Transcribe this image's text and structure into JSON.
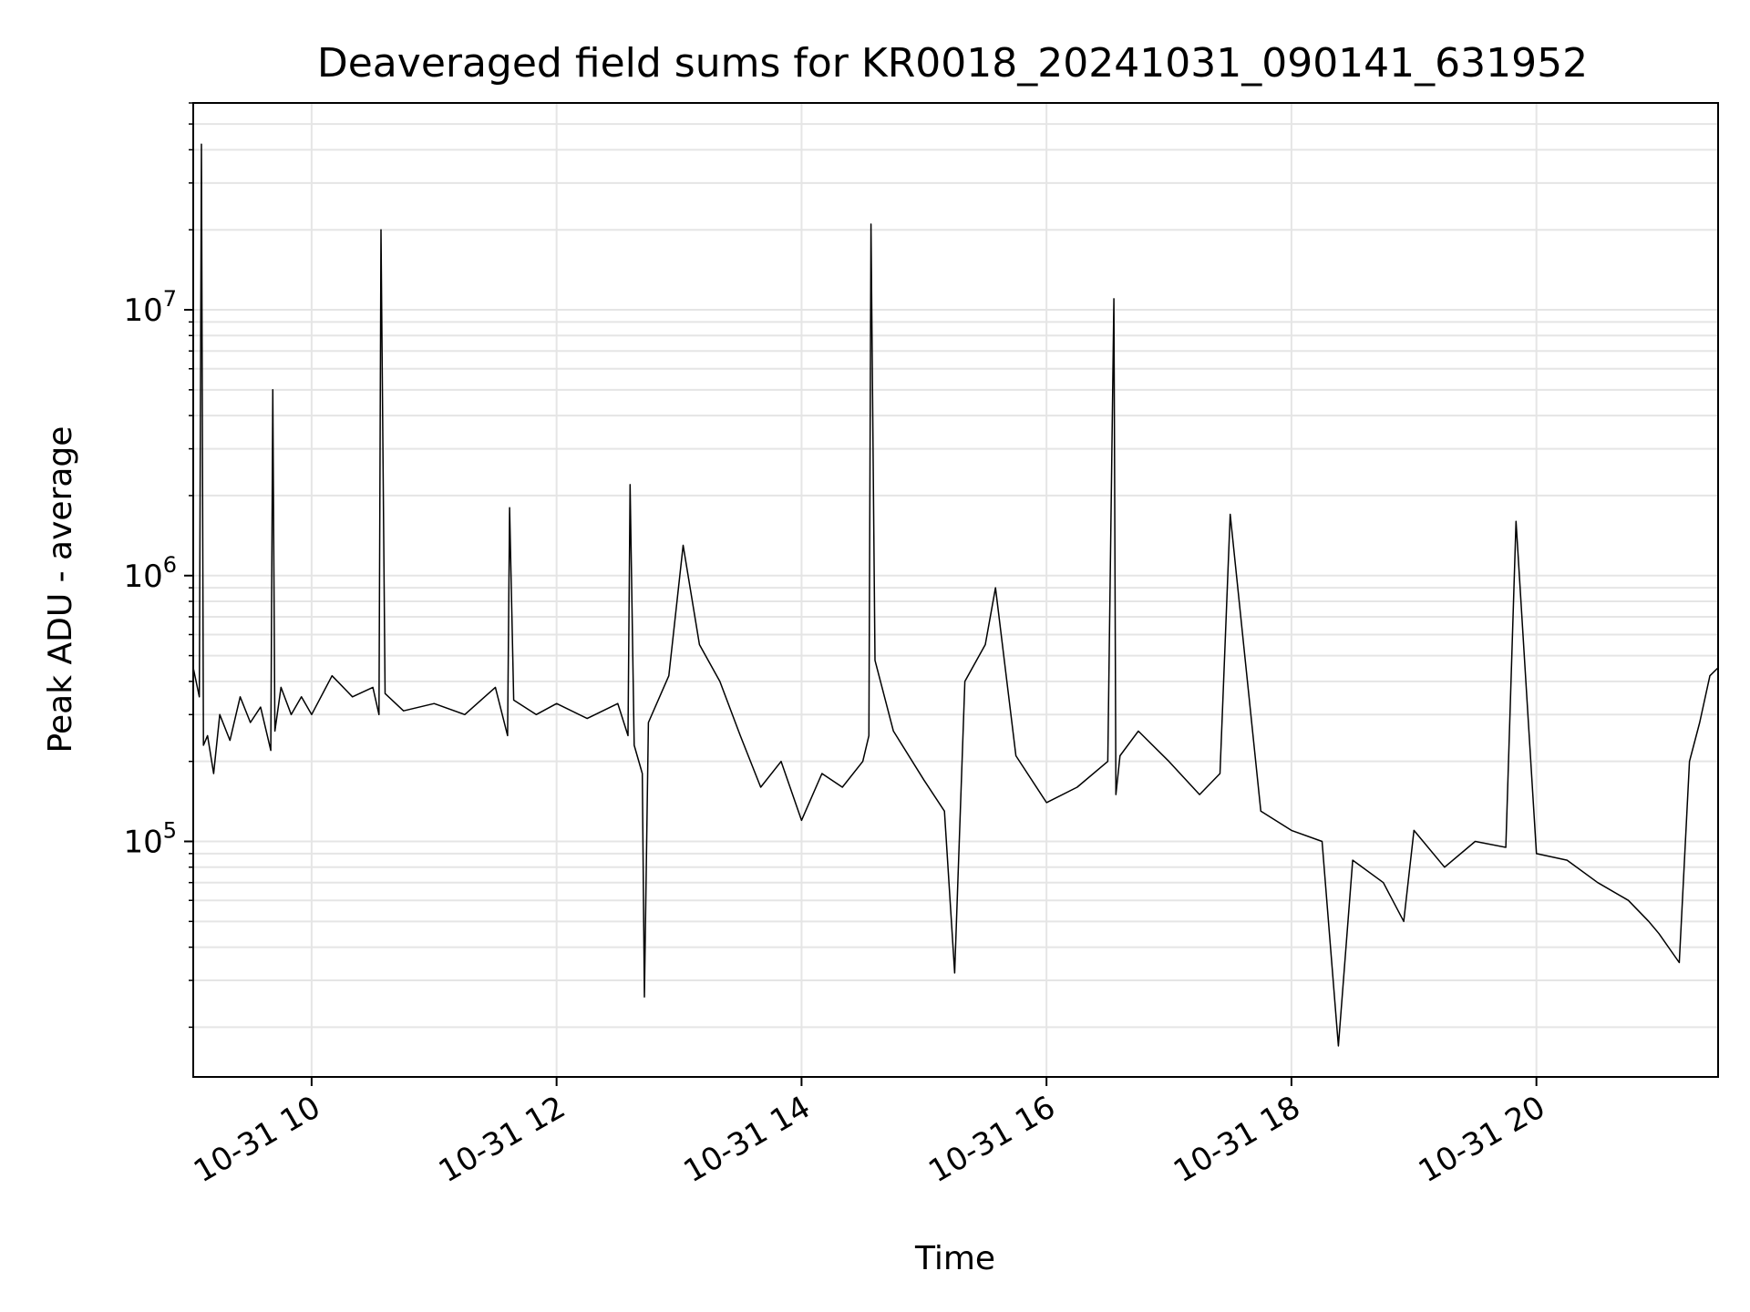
{
  "chart_data": {
    "type": "line",
    "title": "Deaveraged field sums for KR0018_20241031_090141_631952",
    "xlabel": "Time",
    "ylabel": "Peak ADU - average",
    "yscale": "log",
    "ylim": [
      13000,
      60000000
    ],
    "xlim": [
      "2024-10-31 09:02",
      "2024-10-31 21:29"
    ],
    "grid": true,
    "line_color": "#000000",
    "grid_color": "#e5e5e5",
    "x_ticks": [
      {
        "value": "2024-10-31 10:00",
        "label": "10-31 10"
      },
      {
        "value": "2024-10-31 12:00",
        "label": "10-31 12"
      },
      {
        "value": "2024-10-31 14:00",
        "label": "10-31 14"
      },
      {
        "value": "2024-10-31 16:00",
        "label": "10-31 16"
      },
      {
        "value": "2024-10-31 18:00",
        "label": "10-31 18"
      },
      {
        "value": "2024-10-31 20:00",
        "label": "10-31 20"
      }
    ],
    "y_ticks": [
      {
        "value": 100000,
        "base": "10",
        "exp": "5"
      },
      {
        "value": 1000000,
        "base": "10",
        "exp": "6"
      },
      {
        "value": 10000000,
        "base": "10",
        "exp": "7"
      }
    ],
    "series": [
      {
        "x": [
          "2024-10-31 09:02",
          "2024-10-31 09:05",
          "2024-10-31 09:06",
          "2024-10-31 09:07",
          "2024-10-31 09:09",
          "2024-10-31 09:12",
          "2024-10-31 09:15",
          "2024-10-31 09:20",
          "2024-10-31 09:25",
          "2024-10-31 09:30",
          "2024-10-31 09:35",
          "2024-10-31 09:40",
          "2024-10-31 09:41",
          "2024-10-31 09:42",
          "2024-10-31 09:45",
          "2024-10-31 09:50",
          "2024-10-31 09:55",
          "2024-10-31 10:00",
          "2024-10-31 10:10",
          "2024-10-31 10:20",
          "2024-10-31 10:30",
          "2024-10-31 10:33",
          "2024-10-31 10:34",
          "2024-10-31 10:36",
          "2024-10-31 10:45",
          "2024-10-31 11:00",
          "2024-10-31 11:15",
          "2024-10-31 11:30",
          "2024-10-31 11:36",
          "2024-10-31 11:37",
          "2024-10-31 11:39",
          "2024-10-31 11:50",
          "2024-10-31 12:00",
          "2024-10-31 12:15",
          "2024-10-31 12:30",
          "2024-10-31 12:35",
          "2024-10-31 12:36",
          "2024-10-31 12:38",
          "2024-10-31 12:42",
          "2024-10-31 12:43",
          "2024-10-31 12:45",
          "2024-10-31 12:55",
          "2024-10-31 13:02",
          "2024-10-31 13:10",
          "2024-10-31 13:20",
          "2024-10-31 13:30",
          "2024-10-31 13:40",
          "2024-10-31 13:50",
          "2024-10-31 14:00",
          "2024-10-31 14:10",
          "2024-10-31 14:20",
          "2024-10-31 14:30",
          "2024-10-31 14:33",
          "2024-10-31 14:34",
          "2024-10-31 14:36",
          "2024-10-31 14:45",
          "2024-10-31 15:00",
          "2024-10-31 15:10",
          "2024-10-31 15:15",
          "2024-10-31 15:20",
          "2024-10-31 15:30",
          "2024-10-31 15:35",
          "2024-10-31 15:45",
          "2024-10-31 16:00",
          "2024-10-31 16:15",
          "2024-10-31 16:30",
          "2024-10-31 16:33",
          "2024-10-31 16:34",
          "2024-10-31 16:36",
          "2024-10-31 16:45",
          "2024-10-31 17:00",
          "2024-10-31 17:15",
          "2024-10-31 17:25",
          "2024-10-31 17:30",
          "2024-10-31 17:45",
          "2024-10-31 18:00",
          "2024-10-31 18:15",
          "2024-10-31 18:23",
          "2024-10-31 18:30",
          "2024-10-31 18:45",
          "2024-10-31 18:55",
          "2024-10-31 19:00",
          "2024-10-31 19:15",
          "2024-10-31 19:30",
          "2024-10-31 19:45",
          "2024-10-31 19:50",
          "2024-10-31 20:00",
          "2024-10-31 20:15",
          "2024-10-31 20:30",
          "2024-10-31 20:45",
          "2024-10-31 20:55",
          "2024-10-31 21:00",
          "2024-10-31 21:10",
          "2024-10-31 21:15",
          "2024-10-31 21:20",
          "2024-10-31 21:25",
          "2024-10-31 21:29"
        ],
        "y": [
          450000,
          350000,
          42000000,
          230000,
          250000,
          180000,
          300000,
          240000,
          350000,
          280000,
          320000,
          220000,
          5000000,
          260000,
          380000,
          300000,
          350000,
          300000,
          420000,
          350000,
          380000,
          300000,
          20000000,
          360000,
          310000,
          330000,
          300000,
          380000,
          250000,
          1800000,
          340000,
          300000,
          330000,
          290000,
          330000,
          250000,
          2200000,
          230000,
          180000,
          26000,
          280000,
          420000,
          1300000,
          550000,
          400000,
          250000,
          160000,
          200000,
          120000,
          180000,
          160000,
          200000,
          250000,
          21000000,
          480000,
          260000,
          170000,
          130000,
          32000,
          400000,
          550000,
          900000,
          210000,
          140000,
          160000,
          200000,
          11000000,
          150000,
          210000,
          260000,
          200000,
          150000,
          180000,
          1700000,
          130000,
          110000,
          100000,
          17000,
          85000,
          70000,
          50000,
          110000,
          80000,
          100000,
          95000,
          1600000,
          90000,
          85000,
          70000,
          60000,
          50000,
          45000,
          35000,
          200000,
          280000,
          420000,
          450000
        ]
      }
    ]
  }
}
